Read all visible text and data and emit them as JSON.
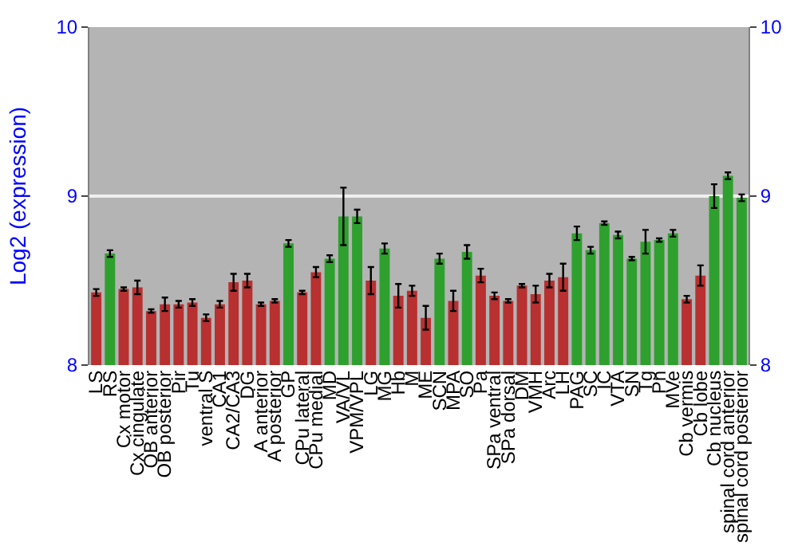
{
  "chart_data": {
    "type": "bar",
    "ylabel": "Log2 (expression)",
    "categories": [
      "LS",
      "RS",
      "Cx motor",
      "Cx cingulate",
      "OB anterior",
      "OB posterior",
      "Pir",
      "Tu",
      "ventral S",
      "CA1",
      "CA2/CA3",
      "DG",
      "A anterior",
      "A posterior",
      "GP",
      "CPu lateral",
      "CPu medial",
      "MD",
      "VA/VL",
      "VPM/VPL",
      "LG",
      "MG",
      "Hb",
      "M",
      "ME",
      "SCN",
      "MPA",
      "SO",
      "Pa",
      "SPa ventral",
      "SPa dorsal",
      "DM",
      "VMH",
      "Arc",
      "LH",
      "PAG",
      "SC",
      "IC",
      "VTA",
      "SN",
      "Tg",
      "Pn",
      "MVe",
      "Cb vermis",
      "Cb lobe",
      "Cb nucleus",
      "spinal cord anterior",
      "spinal cord posterior"
    ],
    "values": [
      8.43,
      8.66,
      8.45,
      8.46,
      8.32,
      8.36,
      8.36,
      8.37,
      8.28,
      8.36,
      8.49,
      8.5,
      8.36,
      8.38,
      8.72,
      8.43,
      8.55,
      8.63,
      8.88,
      8.88,
      8.5,
      8.69,
      8.41,
      8.44,
      8.28,
      8.63,
      8.38,
      8.67,
      8.53,
      8.41,
      8.38,
      8.47,
      8.42,
      8.5,
      8.52,
      8.78,
      8.68,
      8.84,
      8.77,
      8.63,
      8.73,
      8.74,
      8.78,
      8.39,
      8.53,
      9.0,
      9.12,
      8.99
    ],
    "errors": [
      0.02,
      0.02,
      0.01,
      0.04,
      0.01,
      0.04,
      0.02,
      0.02,
      0.02,
      0.02,
      0.05,
      0.04,
      0.01,
      0.01,
      0.02,
      0.01,
      0.03,
      0.02,
      0.17,
      0.04,
      0.08,
      0.03,
      0.07,
      0.03,
      0.07,
      0.03,
      0.06,
      0.04,
      0.04,
      0.02,
      0.01,
      0.01,
      0.05,
      0.04,
      0.08,
      0.04,
      0.02,
      0.01,
      0.02,
      0.01,
      0.07,
      0.01,
      0.02,
      0.02,
      0.06,
      0.07,
      0.02,
      0.02
    ],
    "colors": [
      "#b83030",
      "#2ea02e",
      "#b83030",
      "#b83030",
      "#b83030",
      "#b83030",
      "#b83030",
      "#b83030",
      "#b83030",
      "#b83030",
      "#b83030",
      "#b83030",
      "#b83030",
      "#b83030",
      "#2ea02e",
      "#b83030",
      "#b83030",
      "#2ea02e",
      "#2ea02e",
      "#2ea02e",
      "#b83030",
      "#2ea02e",
      "#b83030",
      "#b83030",
      "#b83030",
      "#2ea02e",
      "#b83030",
      "#2ea02e",
      "#b83030",
      "#b83030",
      "#b83030",
      "#b83030",
      "#b83030",
      "#b83030",
      "#b83030",
      "#2ea02e",
      "#2ea02e",
      "#2ea02e",
      "#2ea02e",
      "#2ea02e",
      "#2ea02e",
      "#2ea02e",
      "#2ea02e",
      "#b83030",
      "#b83030",
      "#2ea02e",
      "#2ea02e",
      "#2ea02e"
    ],
    "ylim": [
      8,
      10
    ],
    "yticks": [
      8,
      9,
      10
    ],
    "y2lim": [
      8,
      10
    ],
    "y2ticks": [
      8,
      9,
      10
    ],
    "grid": "y"
  }
}
